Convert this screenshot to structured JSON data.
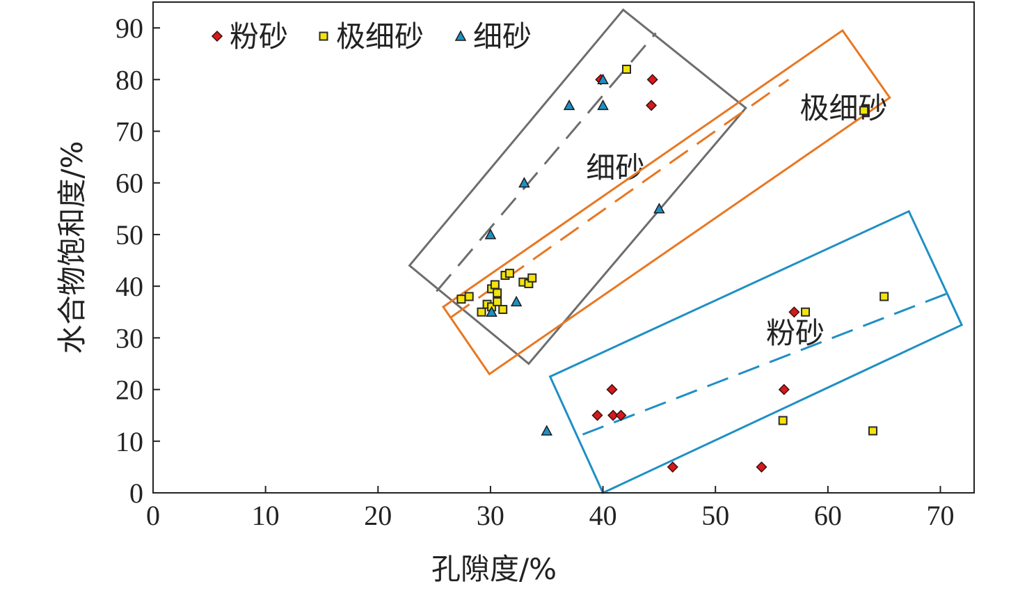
{
  "chart_data": {
    "type": "scatter",
    "xlabel": "孔隙度/%",
    "ylabel": "水合物饱和度/%",
    "xlim": [
      0,
      73
    ],
    "ylim": [
      0,
      95
    ],
    "xticks": [
      0,
      10,
      20,
      30,
      40,
      50,
      60,
      70
    ],
    "yticks": [
      0,
      10,
      20,
      30,
      40,
      50,
      60,
      70,
      80,
      90
    ],
    "grid": false,
    "legend_position": "top-left",
    "series": [
      {
        "name": "粉砂",
        "marker": "diamond",
        "color": "#d7191c",
        "points": [
          [
            39.8,
            80
          ],
          [
            44.4,
            80
          ],
          [
            44.3,
            75
          ],
          [
            57,
            35
          ],
          [
            40.8,
            20
          ],
          [
            56.1,
            20
          ],
          [
            39.5,
            15
          ],
          [
            40.9,
            15
          ],
          [
            41.6,
            15
          ],
          [
            46.2,
            5
          ],
          [
            54.1,
            5
          ]
        ]
      },
      {
        "name": "极细砂",
        "marker": "square",
        "color": "#f4e40a",
        "points": [
          [
            42.1,
            82
          ],
          [
            63.2,
            74
          ],
          [
            27.4,
            37.5
          ],
          [
            28.1,
            38
          ],
          [
            29.2,
            35
          ],
          [
            29.7,
            36.5
          ],
          [
            30.1,
            39.5
          ],
          [
            30.4,
            40.3
          ],
          [
            30.6,
            38.7
          ],
          [
            30.1,
            36
          ],
          [
            30.6,
            37
          ],
          [
            31.1,
            35.5
          ],
          [
            31.3,
            42.1
          ],
          [
            31.7,
            42.5
          ],
          [
            32.9,
            40.8
          ],
          [
            33.4,
            40.5
          ],
          [
            33.7,
            41.6
          ],
          [
            58.0,
            35
          ],
          [
            65.0,
            38
          ],
          [
            56.0,
            14
          ],
          [
            64.0,
            12
          ]
        ]
      },
      {
        "name": "细砂",
        "marker": "triangle",
        "color": "#1f8fc4",
        "points": [
          [
            40.0,
            80
          ],
          [
            37.0,
            75
          ],
          [
            40.0,
            75
          ],
          [
            33.0,
            60
          ],
          [
            30.0,
            50
          ],
          [
            45.0,
            55
          ],
          [
            32.3,
            37
          ],
          [
            30.1,
            35
          ],
          [
            35.0,
            12
          ]
        ]
      }
    ],
    "regions": [
      {
        "label": "细砂",
        "color": "#6d6d6d",
        "polygon": [
          [
            22.8,
            44
          ],
          [
            41.8,
            93.5
          ],
          [
            52.7,
            74.5
          ],
          [
            33.4,
            25
          ]
        ],
        "trend": [
          [
            25.2,
            39
          ],
          [
            44.7,
            89
          ]
        ],
        "label_at": [
          38.5,
          61
        ]
      },
      {
        "label": "极细砂",
        "color": "#e87722",
        "polygon": [
          [
            25.8,
            36
          ],
          [
            61.3,
            89.5
          ],
          [
            65.5,
            76.5
          ],
          [
            29.9,
            23
          ]
        ],
        "trend": [
          [
            26.5,
            34
          ],
          [
            56.5,
            80
          ]
        ],
        "label_at": [
          57.5,
          72.5
        ]
      },
      {
        "label": "粉砂",
        "color": "#1f8fc4",
        "polygon": [
          [
            35.3,
            22.5
          ],
          [
            67.2,
            54.5
          ],
          [
            71.9,
            32.5
          ],
          [
            40.0,
            0
          ]
        ],
        "trend": [
          [
            38.2,
            11.3
          ],
          [
            70.5,
            38.5
          ]
        ],
        "label_at": [
          54.5,
          29
        ]
      }
    ]
  }
}
